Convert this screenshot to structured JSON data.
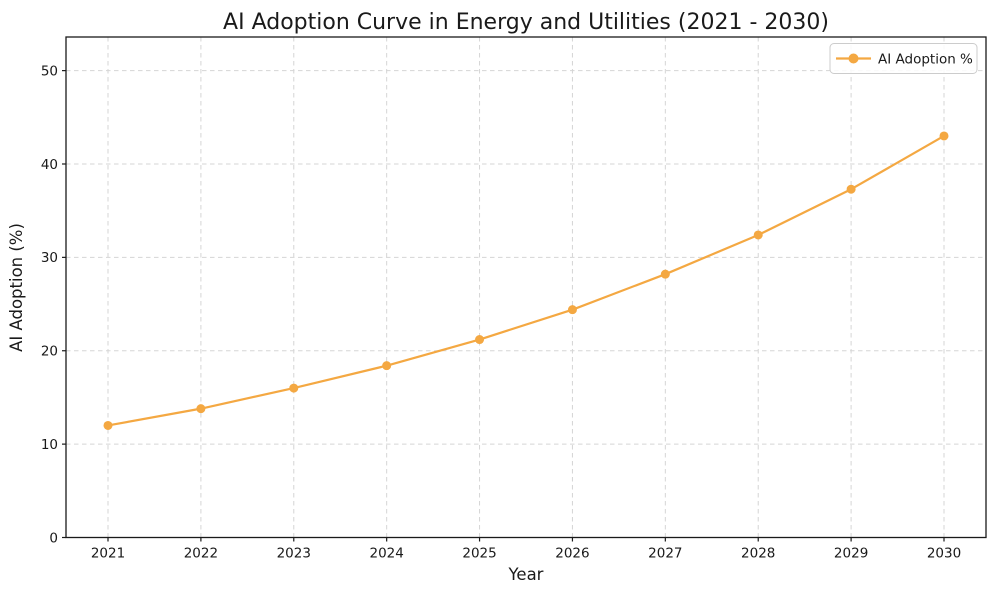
{
  "figure": {
    "background": "#ffffff"
  },
  "chart_data": {
    "type": "line",
    "title": "AI Adoption Curve in Energy and Utilities (2021 - 2030)",
    "xlabel": "Year",
    "ylabel": "AI Adoption (%)",
    "categories": [
      "2021",
      "2022",
      "2023",
      "2024",
      "2025",
      "2026",
      "2027",
      "2028",
      "2029",
      "2030"
    ],
    "series": [
      {
        "name": "AI Adoption %",
        "values": [
          12.0,
          13.8,
          16.0,
          18.4,
          21.2,
          24.4,
          28.2,
          32.4,
          37.3,
          43.0
        ],
        "color": "#f4a842",
        "marker": "circle",
        "line_width": 2.2,
        "marker_radius": 4.5
      }
    ],
    "ylim": [
      0,
      53.6
    ],
    "yticks": [
      0,
      10,
      20,
      30,
      40,
      50
    ],
    "grid": true,
    "grid_style": "dashed",
    "legend": {
      "position": "upper right",
      "entries": [
        "AI Adoption %"
      ]
    }
  },
  "colors": {
    "line": "#f4a842",
    "grid": "#d5d5d5",
    "spine": "#1a1a1a",
    "text": "#1a1a1a",
    "legend_border": "#cccccc",
    "legend_bg": "#ffffff"
  }
}
